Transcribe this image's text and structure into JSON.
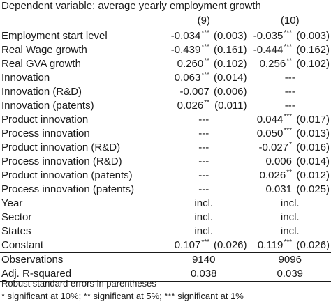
{
  "caption": "Dependent variable: average yearly employment growth",
  "columns": [
    "(9)",
    "(10)"
  ],
  "rows": [
    {
      "label": "Employment start level",
      "c9": "-0.034",
      "s9": "***",
      "se9": "(0.003)",
      "c10": "-0.035",
      "s10": "***",
      "se10": "(0.003)"
    },
    {
      "label": "Real Wage growth",
      "c9": "-0.439",
      "s9": "***",
      "se9": "(0.161)",
      "c10": "-0.444",
      "s10": "***",
      "se10": "(0.162)"
    },
    {
      "label": "Real GVA growth",
      "c9": "0.260",
      "s9": "**",
      "se9": "(0.102)",
      "c10": "0.256",
      "s10": "**",
      "se10": "(0.102)"
    },
    {
      "label": "Innovation",
      "c9": "0.063",
      "s9": "***",
      "se9": "(0.014)",
      "c10": "---",
      "s10": "",
      "se10": ""
    },
    {
      "label": "Innovation (R&D)",
      "c9": "-0.007",
      "s9": "",
      "se9": "(0.006)",
      "c10": "---",
      "s10": "",
      "se10": ""
    },
    {
      "label": "Innovation (patents)",
      "c9": "0.026",
      "s9": "**",
      "se9": "(0.011)",
      "c10": "---",
      "s10": "",
      "se10": ""
    },
    {
      "label": "Product innovation",
      "c9": "---",
      "s9": "",
      "se9": "",
      "c10": "0.044",
      "s10": "***",
      "se10": "(0.017)"
    },
    {
      "label": "Process innovation",
      "c9": "---",
      "s9": "",
      "se9": "",
      "c10": "0.050",
      "s10": "***",
      "se10": "(0.013)"
    },
    {
      "label": "Product innovation (R&D)",
      "c9": "---",
      "s9": "",
      "se9": "",
      "c10": "-0.027",
      "s10": "*",
      "se10": "(0.016)"
    },
    {
      "label": "Process innovation (R&D)",
      "c9": "---",
      "s9": "",
      "se9": "",
      "c10": "0.006",
      "s10": "",
      "se10": "(0.014)"
    },
    {
      "label": "Product innovation (patents)",
      "c9": "---",
      "s9": "",
      "se9": "",
      "c10": "0.026",
      "s10": "**",
      "se10": "(0.012)"
    },
    {
      "label": "Process innovation (patents)",
      "c9": "---",
      "s9": "",
      "se9": "",
      "c10": "0.031",
      "s10": "",
      "se10": "(0.025)"
    },
    {
      "label": "Year",
      "c9": "incl.",
      "s9": "",
      "se9": "",
      "c10": "incl.",
      "s10": "",
      "se10": ""
    },
    {
      "label": "Sector",
      "c9": "incl.",
      "s9": "",
      "se9": "",
      "c10": "incl.",
      "s10": "",
      "se10": ""
    },
    {
      "label": "States",
      "c9": "incl.",
      "s9": "",
      "se9": "",
      "c10": "incl.",
      "s10": "",
      "se10": ""
    },
    {
      "label": "Constant",
      "c9": "0.107",
      "s9": "***",
      "se9": "(0.026)",
      "c10": "0.119",
      "s10": "***",
      "se10": "(0.026)"
    }
  ],
  "stats": [
    {
      "label": "Observations",
      "v9": "9140",
      "v10": "9096"
    },
    {
      "label": "Adj. R-squared",
      "v9": "0.038",
      "v10": "0.039"
    }
  ],
  "notes": [
    "Robust standard errors in parentheses",
    "* significant at 10%; ** significant at 5%; *** significant at 1%"
  ]
}
